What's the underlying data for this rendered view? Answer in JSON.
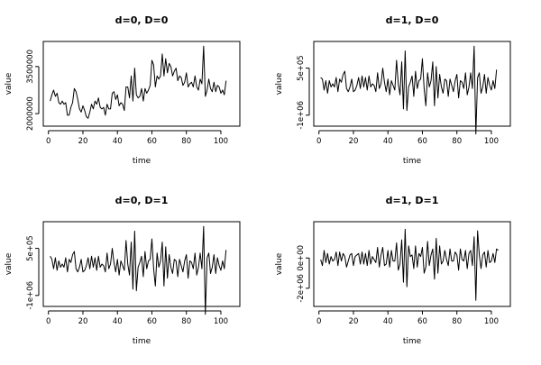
{
  "chart_data": [
    {
      "type": "line",
      "title": "d=0, D=0",
      "xlabel": "time",
      "ylabel": "value",
      "xlim": [
        -3,
        111
      ],
      "ylim": [
        1600000,
        4300000
      ],
      "xticks": [
        0,
        20,
        40,
        60,
        80,
        100
      ],
      "yticks": [
        2000000,
        3500000
      ],
      "ytick_labels": [
        "2000000",
        "3500000"
      ],
      "x_start": 1,
      "values": [
        2400000,
        2600000,
        2750000,
        2550000,
        2650000,
        2350000,
        2300000,
        2400000,
        2300000,
        2350000,
        1950000,
        1950000,
        2200000,
        2350000,
        2800000,
        2700000,
        2450000,
        2150000,
        2050000,
        2250000,
        2100000,
        1900000,
        1850000,
        2050000,
        2300000,
        2150000,
        2400000,
        2300000,
        2500000,
        2200000,
        2150000,
        2200000,
        1950000,
        2300000,
        2150000,
        2150000,
        2650000,
        2700000,
        2450000,
        2600000,
        2250000,
        2350000,
        2300000,
        2100000,
        2850000,
        2850000,
        2500000,
        3200000,
        2400000,
        3450000,
        2600000,
        2500000,
        2550000,
        2800000,
        2400000,
        2800000,
        2650000,
        2750000,
        2900000,
        3700000,
        3550000,
        2850000,
        3200000,
        3100000,
        3200000,
        3900000,
        3200000,
        3750000,
        3300000,
        3600000,
        3500000,
        3200000,
        3350000,
        3450000,
        3050000,
        3200000,
        3150000,
        2900000,
        3000000,
        3300000,
        2850000,
        2950000,
        3000000,
        2850000,
        3200000,
        2850000,
        2750000,
        3100000,
        2950000,
        4150000,
        2550000,
        2750000,
        3100000,
        2800000,
        2700000,
        3000000,
        2700000,
        2900000,
        2850000,
        2650000,
        2750000,
        2600000,
        3050000
      ]
    },
    {
      "type": "line",
      "title": "d=1, D=0",
      "xlabel": "time",
      "ylabel": "value",
      "xlim": [
        -3,
        111
      ],
      "ylim": [
        -1350000,
        1350000
      ],
      "xticks": [
        0,
        20,
        40,
        60,
        80,
        100
      ],
      "yticks": [
        -1000000,
        500000
      ],
      "ytick_labels": [
        "-1e+06",
        "5e+05"
      ],
      "x_start": 1,
      "values": [
        200000,
        150000,
        -200000,
        100000,
        -300000,
        100000,
        -100000,
        0,
        -100000,
        200000,
        -250000,
        150000,
        50000,
        300000,
        400000,
        -150000,
        -250000,
        -100000,
        150000,
        -250000,
        -200000,
        -50000,
        200000,
        -150000,
        250000,
        -100000,
        200000,
        -200000,
        250000,
        -100000,
        0,
        -50000,
        -250000,
        350000,
        -150000,
        0,
        500000,
        50000,
        -250000,
        150000,
        -350000,
        100000,
        -50000,
        -200000,
        750000,
        0,
        -350000,
        700000,
        -800000,
        1050000,
        -850000,
        -100000,
        50000,
        250000,
        -400000,
        400000,
        -150000,
        100000,
        150000,
        800000,
        -150000,
        -700000,
        350000,
        -100000,
        100000,
        700000,
        -700000,
        550000,
        -450000,
        300000,
        -100000,
        -300000,
        150000,
        100000,
        -400000,
        150000,
        -50000,
        -250000,
        100000,
        300000,
        -450000,
        100000,
        50000,
        -150000,
        350000,
        -350000,
        -100000,
        350000,
        -150000,
        1200000,
        -1600000,
        200000,
        350000,
        -300000,
        -100000,
        300000,
        -300000,
        200000,
        -50000,
        -200000,
        100000,
        -150000,
        450000
      ]
    },
    {
      "type": "line",
      "title": "d=0, D=1",
      "xlabel": "time",
      "ylabel": "value",
      "xlim": [
        -3,
        111
      ],
      "ylim": [
        -1350000,
        1350000
      ],
      "xticks": [
        0,
        20,
        40,
        60,
        80,
        100
      ],
      "yticks": [
        -1000000,
        500000
      ],
      "ytick_labels": [
        "-1e+06",
        "5e+05"
      ],
      "x_start": 1,
      "values": [
        250000,
        150000,
        -150000,
        200000,
        -200000,
        100000,
        -100000,
        0,
        -100000,
        200000,
        -250000,
        150000,
        50000,
        300000,
        400000,
        -150000,
        -250000,
        -100000,
        150000,
        -250000,
        -200000,
        -50000,
        200000,
        -150000,
        250000,
        -100000,
        200000,
        -200000,
        250000,
        -100000,
        0,
        -50000,
        -250000,
        350000,
        -150000,
        0,
        500000,
        50000,
        -250000,
        150000,
        -350000,
        100000,
        -50000,
        -200000,
        750000,
        0,
        -350000,
        700000,
        -800000,
        1050000,
        -850000,
        -100000,
        50000,
        250000,
        -400000,
        400000,
        -150000,
        100000,
        150000,
        800000,
        -150000,
        -700000,
        350000,
        -100000,
        100000,
        700000,
        -700000,
        550000,
        -450000,
        300000,
        -100000,
        -300000,
        150000,
        100000,
        -400000,
        150000,
        -50000,
        -250000,
        100000,
        300000,
        -450000,
        100000,
        50000,
        -150000,
        350000,
        -350000,
        -100000,
        350000,
        -150000,
        1200000,
        -1600000,
        200000,
        350000,
        -300000,
        -100000,
        300000,
        -300000,
        200000,
        -50000,
        -200000,
        100000,
        -150000,
        450000
      ]
    },
    {
      "type": "line",
      "title": "d=1, D=1",
      "xlabel": "time",
      "ylabel": "value",
      "xlim": [
        -3,
        111
      ],
      "ylim": [
        -3200000,
        2400000
      ],
      "xticks": [
        0,
        20,
        40,
        60,
        80,
        100
      ],
      "yticks": [
        -2000000,
        0
      ],
      "ytick_labels": [
        "-2e+06",
        "0e+00"
      ],
      "x_start": 1,
      "values": [
        -100000,
        -500000,
        500000,
        -300000,
        300000,
        -400000,
        100000,
        -200000,
        -100000,
        400000,
        -500000,
        400000,
        -200000,
        300000,
        100000,
        -600000,
        -200000,
        200000,
        300000,
        -500000,
        100000,
        200000,
        300000,
        -400000,
        400000,
        -400000,
        300000,
        -500000,
        500000,
        -400000,
        100000,
        -100000,
        -300000,
        700000,
        -600000,
        200000,
        700000,
        -500000,
        -400000,
        500000,
        -600000,
        500000,
        -200000,
        -200000,
        1000000,
        -800000,
        -400000,
        1200000,
        -1600000,
        1900000,
        -1900000,
        800000,
        100000,
        200000,
        -700000,
        800000,
        -600000,
        300000,
        100000,
        700000,
        -1000000,
        -600000,
        1100000,
        -500000,
        200000,
        600000,
        -1400000,
        1300000,
        -1000000,
        800000,
        -400000,
        -200000,
        500000,
        -100000,
        -500000,
        600000,
        -200000,
        -200000,
        400000,
        200000,
        -800000,
        600000,
        -100000,
        -200000,
        500000,
        -700000,
        300000,
        500000,
        -500000,
        1400000,
        -2800000,
        1800000,
        200000,
        -700000,
        200000,
        400000,
        -600000,
        500000,
        -300000,
        -200000,
        300000,
        -300000,
        600000,
        500000
      ]
    }
  ]
}
